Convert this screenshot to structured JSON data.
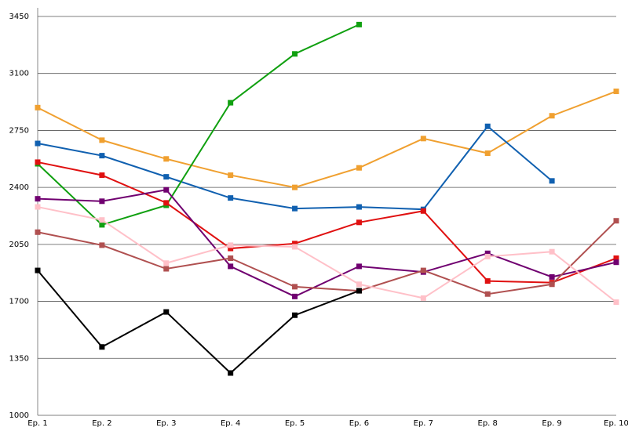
{
  "chart_data": {
    "type": "line",
    "categories": [
      "Ep. 1",
      "Ep. 2",
      "Ep. 3",
      "Ep. 4",
      "Ep. 5",
      "Ep. 6",
      "Ep. 7",
      "Ep. 8",
      "Ep. 9",
      "Ep. 10"
    ],
    "series": [
      {
        "color": "#f0a030",
        "values": [
          2890,
          2690,
          2575,
          2475,
          2400,
          2520,
          2700,
          2610,
          2840,
          2990
        ]
      },
      {
        "color": "#1060b0",
        "values": [
          2670,
          2595,
          2465,
          2335,
          2270,
          2280,
          2265,
          2775,
          2440,
          null
        ]
      },
      {
        "color": "#10a010",
        "values": [
          2545,
          2170,
          2290,
          2920,
          3220,
          3400,
          null,
          null,
          null,
          null
        ]
      },
      {
        "color": "#e01010",
        "values": [
          2555,
          2475,
          2305,
          2025,
          2055,
          2185,
          2255,
          1825,
          1815,
          1965
        ]
      },
      {
        "color": "#700070",
        "values": [
          2330,
          2315,
          2385,
          1915,
          1730,
          1915,
          1880,
          1995,
          1850,
          1940
        ]
      },
      {
        "color": "#b05050",
        "values": [
          2125,
          2045,
          1900,
          1965,
          1790,
          1765,
          1890,
          1745,
          1805,
          2195
        ]
      },
      {
        "color": "#ffc0c8",
        "values": [
          2280,
          2200,
          1935,
          2045,
          2035,
          1805,
          1720,
          1975,
          2005,
          1695
        ]
      },
      {
        "color": "#000000",
        "values": [
          1890,
          1420,
          1635,
          1260,
          1615,
          1765,
          null,
          null,
          null,
          null
        ]
      }
    ],
    "ylim": [
      1000,
      3500
    ],
    "yticks": [
      1000,
      1350,
      1700,
      2050,
      2400,
      2750,
      3100,
      3450
    ],
    "grid": true
  }
}
